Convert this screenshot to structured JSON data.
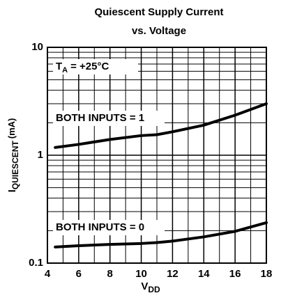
{
  "chart_data": {
    "type": "line",
    "title": [
      "Quiescent Supply Current",
      "vs. Voltage"
    ],
    "x_label": {
      "main": "V",
      "sub": "DD"
    },
    "y_label": {
      "main": "I",
      "sub": "QUIESCENT",
      "unit": "(mA)"
    },
    "annotations": [
      {
        "main": "T",
        "sub": "A",
        "rest": "= +25°C"
      },
      {
        "text": "BOTH INPUTS = 1"
      },
      {
        "text": "BOTH INPUTS = 0"
      }
    ],
    "x": [
      4.5,
      6,
      8,
      10,
      11,
      12,
      14,
      16,
      18
    ],
    "series": [
      {
        "name": "BOTH INPUTS = 1",
        "color": "#000000",
        "values": [
          1.18,
          1.26,
          1.4,
          1.52,
          1.55,
          1.65,
          1.9,
          2.35,
          3.0
        ]
      },
      {
        "name": "BOTH INPUTS = 0",
        "color": "#000000",
        "values": [
          0.141,
          0.145,
          0.149,
          0.152,
          0.155,
          0.16,
          0.175,
          0.197,
          0.237
        ]
      }
    ],
    "xlim": [
      4,
      18
    ],
    "xticks": [
      4,
      6,
      8,
      10,
      12,
      14,
      16,
      18
    ],
    "ylim": [
      0.1,
      10
    ],
    "yticks": [
      0.1,
      1,
      10
    ],
    "log_y": true,
    "grid": true,
    "minor_grid": true
  }
}
